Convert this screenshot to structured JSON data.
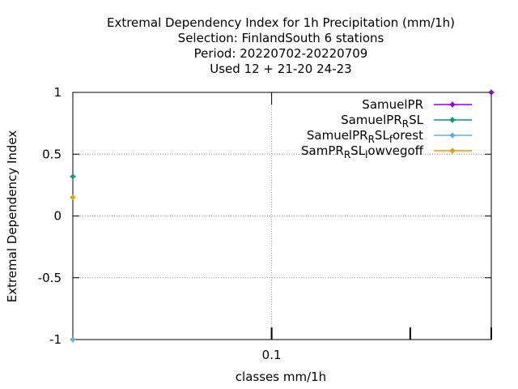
{
  "chart_data": {
    "type": "line",
    "title_lines": [
      "Extremal Dependency Index  for 1h Precipitation (mm/1h)",
      "Selection: FinlandSouth      6 stations",
      "Period: 20220702-20220709",
      "Used  12 + 21-20 24-23"
    ],
    "xlabel": "classes mm/1h",
    "ylabel": "Extremal Dependency Index",
    "x_scale": "log",
    "xlim": [
      0.037,
      0.3
    ],
    "ylim": [
      -1,
      1
    ],
    "y_ticks": [
      {
        "value": 1,
        "label": "1"
      },
      {
        "value": 0.5,
        "label": "0.5"
      },
      {
        "value": 0,
        "label": "0"
      },
      {
        "value": -0.5,
        "label": "-0.5"
      },
      {
        "value": -1,
        "label": "-1"
      }
    ],
    "x_major_ticks": [
      {
        "value": 0.1,
        "label": "0.1"
      }
    ],
    "x_minor_ticks": [
      0.2,
      0.3
    ],
    "grid": true,
    "legend_position": "top-right",
    "series": [
      {
        "name": "SamuelPR",
        "legend_main": "SamuelPR",
        "legend_sub": "",
        "legend_tail": "",
        "color": "#9400d3",
        "points": [
          {
            "x": 0.3,
            "y": 1
          }
        ]
      },
      {
        "name": "SamuelPR_RSL",
        "legend_main": "SamuelPR",
        "legend_sub": "R",
        "legend_tail": "SL",
        "color": "#009e73",
        "points": [
          {
            "x": 0.037,
            "y": 0.32
          }
        ]
      },
      {
        "name": "SamuelPR_RSL_forest",
        "legend_main": "SamuelPR",
        "legend_sub": "R",
        "legend_tail": "SL",
        "legend_sub2": "f",
        "legend_tail2": "orest",
        "color": "#56b4e9",
        "points": [
          {
            "x": 0.037,
            "y": -1
          }
        ]
      },
      {
        "name": "SamPR_RSL_lowvegoff",
        "legend_main": "SamPR",
        "legend_sub": "R",
        "legend_tail": "SL",
        "legend_sub2": "l",
        "legend_tail2": "owvegoff",
        "color": "#e69f00",
        "points": [
          {
            "x": 0.037,
            "y": 0.15
          }
        ]
      }
    ]
  }
}
